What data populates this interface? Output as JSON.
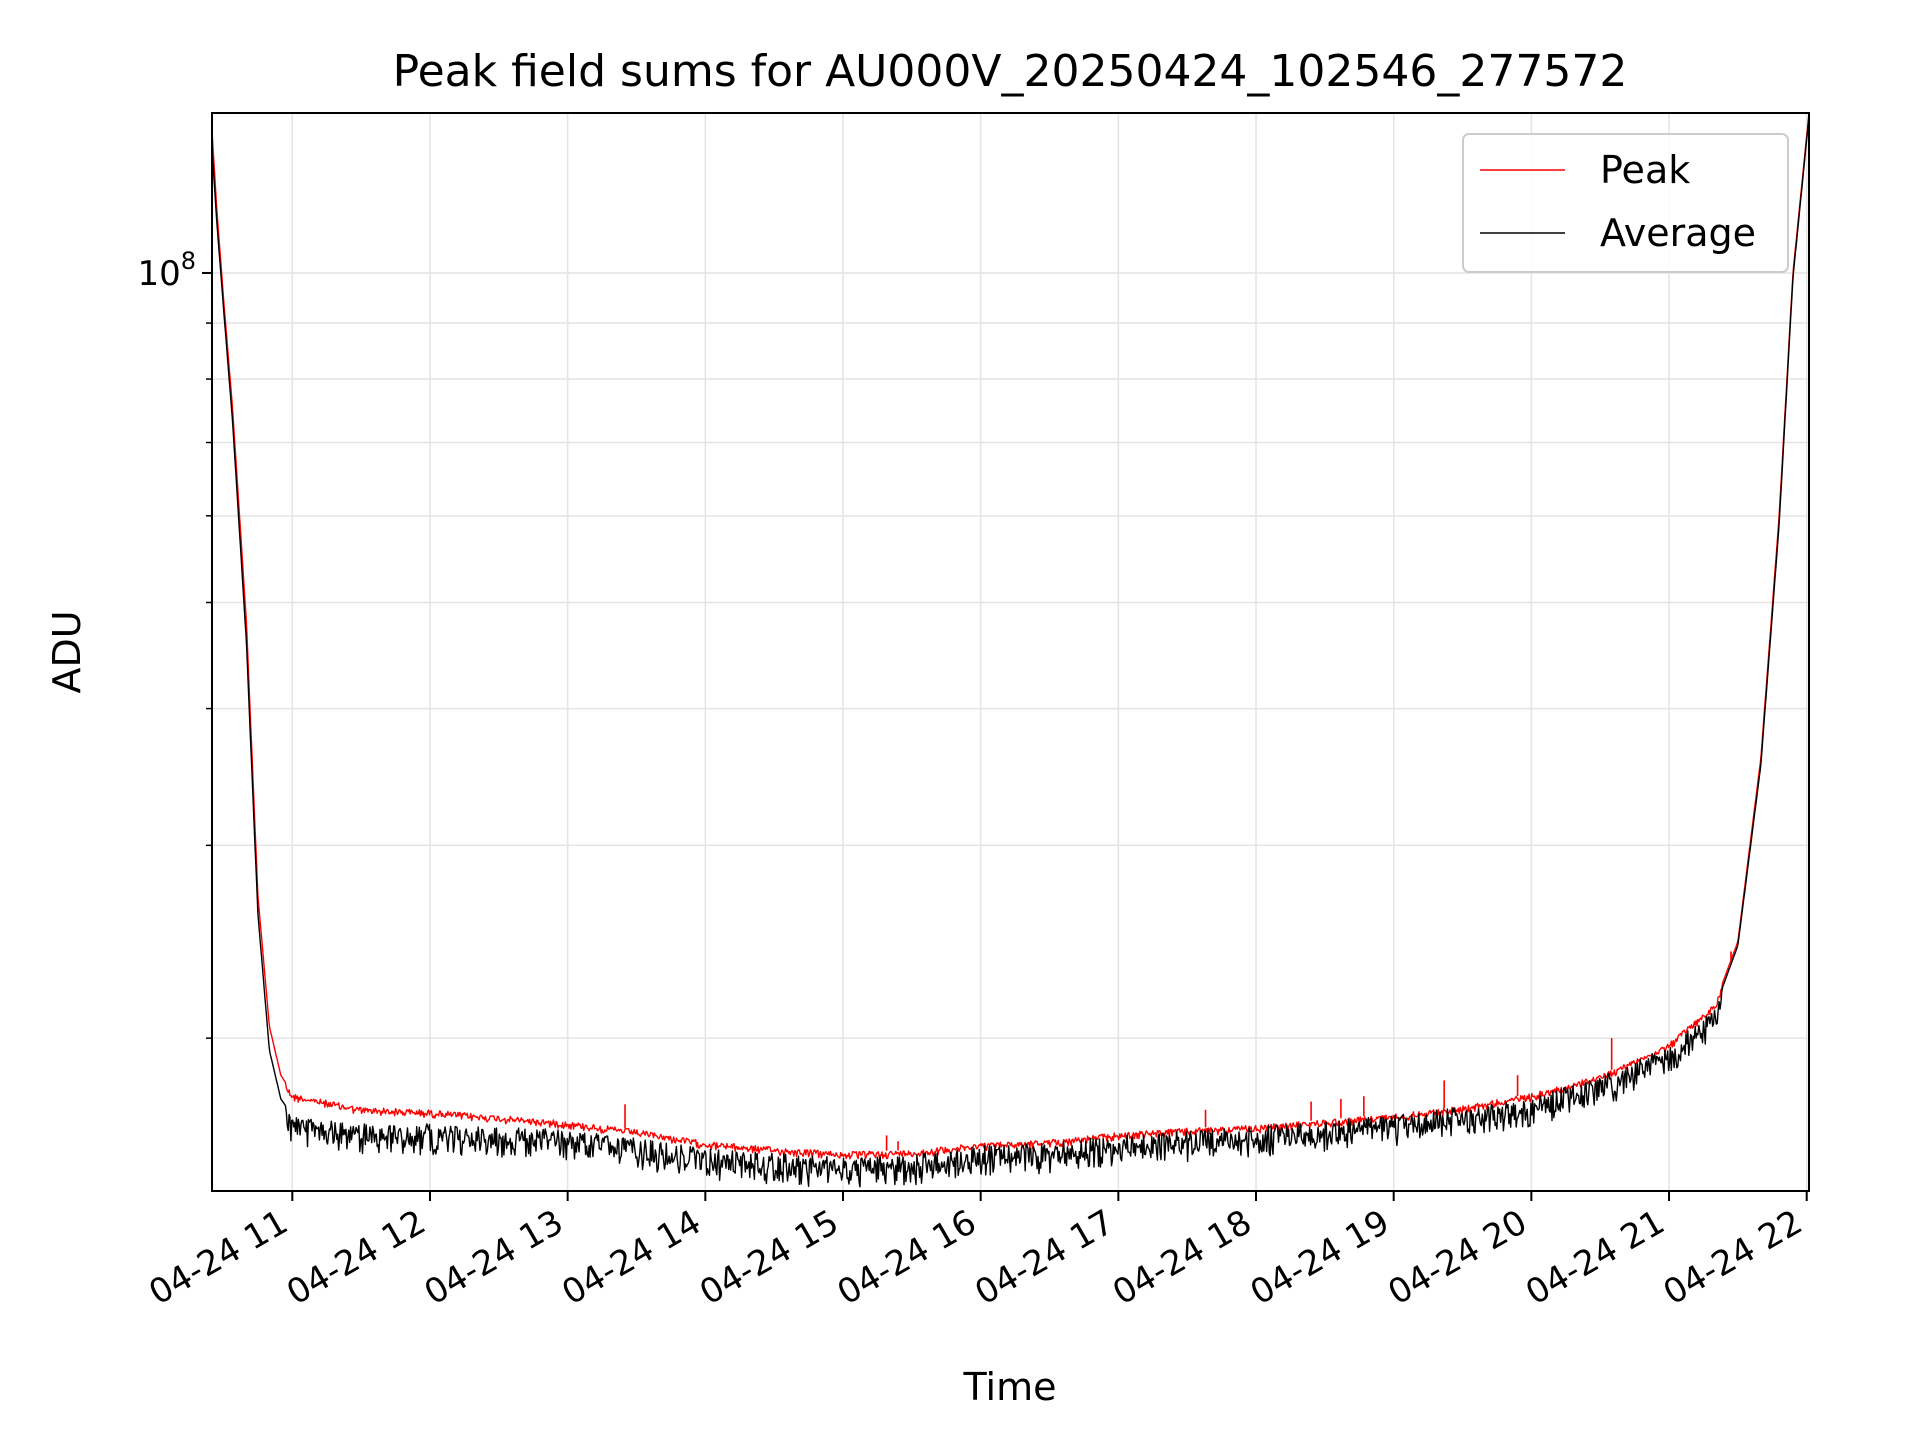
{
  "chart_data": {
    "type": "line",
    "title": "Peak field sums for AU000V_20250424_102546_277572",
    "xlabel": "Time",
    "ylabel": "ADU",
    "yscale": "log",
    "grid": true,
    "legend": "top-right",
    "x_tick_labels": [
      "04-24 11",
      "04-24 12",
      "04-24 13",
      "04-24 14",
      "04-24 15",
      "04-24 16",
      "04-24 17",
      "04-24 18",
      "04-24 19",
      "04-24 20",
      "04-24 21",
      "04-24 22"
    ],
    "x_ticks": [
      "2025-04-24 11:00",
      "2025-04-24 12:00",
      "2025-04-24 13:00",
      "2025-04-24 14:00",
      "2025-04-24 15:00",
      "2025-04-24 16:00",
      "2025-04-24 17:00",
      "2025-04-24 18:00",
      "2025-04-24 19:00",
      "2025-04-24 20:00",
      "2025-04-24 21:00",
      "2025-04-24 22:00"
    ],
    "xlim": [
      "2025-04-24 10:25",
      "2025-04-24 22:01"
    ],
    "y_tick_labels": [
      {
        "base": "10",
        "exp": "8",
        "value": 100000000
      }
    ],
    "ylim": [
      14500000,
      140000000
    ],
    "y_minor_ticks": [
      20000000,
      30000000,
      40000000,
      50000000,
      60000000,
      70000000,
      80000000,
      90000000,
      200000000
    ],
    "series": [
      {
        "name": "Peak",
        "color": "#ff0000",
        "x": [
          "2025-04-24 10:25",
          "2025-04-24 10:27",
          "2025-04-24 10:30",
          "2025-04-24 10:34",
          "2025-04-24 10:40",
          "2025-04-24 10:45",
          "2025-04-24 10:50",
          "2025-04-24 10:55",
          "2025-04-24 11:00",
          "2025-04-24 11:30",
          "2025-04-24 12:00",
          "2025-04-24 12:30",
          "2025-04-24 13:00",
          "2025-04-24 13:30",
          "2025-04-24 14:00",
          "2025-04-24 14:30",
          "2025-04-24 15:00",
          "2025-04-24 15:30",
          "2025-04-24 16:00",
          "2025-04-24 16:30",
          "2025-04-24 17:00",
          "2025-04-24 17:30",
          "2025-04-24 18:00",
          "2025-04-24 18:30",
          "2025-04-24 19:00",
          "2025-04-24 19:30",
          "2025-04-24 20:00",
          "2025-04-24 20:30",
          "2025-04-24 21:00",
          "2025-04-24 21:20",
          "2025-04-24 21:30",
          "2025-04-24 21:40",
          "2025-04-24 21:48",
          "2025-04-24 21:54",
          "2025-04-24 22:01"
        ],
        "y": [
          135000000,
          115000000,
          95000000,
          75000000,
          48000000,
          27000000,
          20500000,
          18500000,
          17800000,
          17300000,
          17200000,
          17000000,
          16800000,
          16500000,
          16100000,
          15900000,
          15750000,
          15800000,
          16050000,
          16150000,
          16400000,
          16550000,
          16650000,
          16850000,
          17050000,
          17350000,
          17800000,
          18500000,
          19800000,
          21500000,
          24500000,
          36000000,
          60000000,
          100000000,
          140000000
        ],
        "spikes": [
          {
            "x": "2025-04-24 10:25",
            "y": 137000000
          },
          {
            "x": "2025-04-24 13:25",
            "y": 17400000
          },
          {
            "x": "2025-04-24 15:19",
            "y": 16300000
          },
          {
            "x": "2025-04-24 15:24",
            "y": 16100000
          },
          {
            "x": "2025-04-24 17:38",
            "y": 17200000
          },
          {
            "x": "2025-04-24 18:24",
            "y": 17500000
          },
          {
            "x": "2025-04-24 18:37",
            "y": 17600000
          },
          {
            "x": "2025-04-24 18:47",
            "y": 17700000
          },
          {
            "x": "2025-04-24 19:22",
            "y": 18300000
          },
          {
            "x": "2025-04-24 19:54",
            "y": 18500000
          },
          {
            "x": "2025-04-24 20:35",
            "y": 20000000
          },
          {
            "x": "2025-04-24 21:27",
            "y": 24000000
          }
        ]
      },
      {
        "name": "Average",
        "color": "#000000",
        "x": [
          "2025-04-24 10:25",
          "2025-04-24 10:27",
          "2025-04-24 10:30",
          "2025-04-24 10:34",
          "2025-04-24 10:40",
          "2025-04-24 10:45",
          "2025-04-24 10:50",
          "2025-04-24 10:55",
          "2025-04-24 11:00",
          "2025-04-24 11:30",
          "2025-04-24 12:00",
          "2025-04-24 12:30",
          "2025-04-24 13:00",
          "2025-04-24 13:30",
          "2025-04-24 14:00",
          "2025-04-24 14:30",
          "2025-04-24 15:00",
          "2025-04-24 15:30",
          "2025-04-24 16:00",
          "2025-04-24 16:30",
          "2025-04-24 17:00",
          "2025-04-24 17:30",
          "2025-04-24 18:00",
          "2025-04-24 18:30",
          "2025-04-24 19:00",
          "2025-04-24 19:30",
          "2025-04-24 20:00",
          "2025-04-24 20:30",
          "2025-04-24 21:00",
          "2025-04-24 21:20",
          "2025-04-24 21:30",
          "2025-04-24 21:40",
          "2025-04-24 21:48",
          "2025-04-24 21:54",
          "2025-04-24 22:01"
        ],
        "y": [
          130000000,
          112000000,
          93000000,
          73000000,
          46000000,
          26000000,
          19500000,
          17600000,
          17000000,
          16700000,
          16700000,
          16600000,
          16500000,
          16200000,
          15850000,
          15700000,
          15550000,
          15650000,
          15950000,
          16050000,
          16300000,
          16450000,
          16600000,
          16800000,
          17000000,
          17300000,
          17700000,
          18400000,
          19700000,
          21300000,
          24300000,
          35500000,
          59000000,
          99000000,
          139000000
        ]
      }
    ]
  }
}
